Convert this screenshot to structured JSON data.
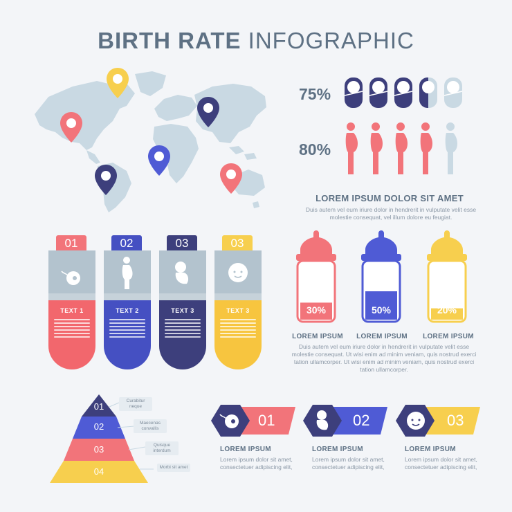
{
  "title": {
    "bold": "BIRTH RATE",
    "light": "INFOGRAPHIC"
  },
  "stats": [
    {
      "value": "75%"
    },
    {
      "value": "80%"
    }
  ],
  "main_heading": "LOREM IPSUM DOLOR SIT AMET",
  "main_body": "Duis autem vel eum iriure dolor in hendrerit in vulputate velit esse molestie consequat, vel illum dolore eu feugiat.",
  "tubes": [
    {
      "num": "01",
      "label": "TEXT 1",
      "color": "#f2676d",
      "icon": "sperm-egg-icon"
    },
    {
      "num": "02",
      "label": "TEXT 2",
      "color": "#4550c2",
      "icon": "pregnant-woman-icon"
    },
    {
      "num": "03",
      "label": "TEXT 3",
      "color": "#3d3f7c",
      "icon": "fetus-icon"
    },
    {
      "num": "03",
      "label": "TEXT 3",
      "color": "#f7c53f",
      "icon": "baby-face-icon"
    }
  ],
  "bottles": [
    {
      "value": "30%",
      "fill_fraction": 0.3,
      "color": "#f2747a",
      "label": "LOREM IPSUM"
    },
    {
      "value": "50%",
      "fill_fraction": 0.5,
      "color": "#4f5bd5",
      "label": "LOREM IPSUM"
    },
    {
      "value": "20%",
      "fill_fraction": 0.2,
      "color": "#f7cf4e",
      "label": "LOREM IPSUM"
    }
  ],
  "bottles_body": "Duis autem vel eum iriure dolor in hendrerit in vulputate velit esse molestie consequat. Ut wisi enim ad minim veniam, quis nostrud exerci tation ullamcorper. Ut wisi enim ad minim veniam, quis nostrud exerci tation ullamcorper.",
  "pyramid": [
    {
      "num": "01",
      "note": "Curabitur neque",
      "color": "#3d3f7c"
    },
    {
      "num": "02",
      "note": "Maecenas convallis",
      "color": "#4f5bd5"
    },
    {
      "num": "03",
      "note": "Quisque interdum",
      "color": "#f2747a"
    },
    {
      "num": "04",
      "note": "Morbi sit amet",
      "color": "#f7cf4e"
    }
  ],
  "hex_steps": [
    {
      "num": "01",
      "heading": "LOREM IPSUM",
      "body": "Lorem ipsum dolor sit amet, consectetuer adipiscing elit,",
      "dark": "#3d3f7c",
      "light": "#f2747a",
      "icon": "sperm-egg-icon"
    },
    {
      "num": "02",
      "heading": "LOREM IPSUM",
      "body": "Lorem ipsum dolor sit amet, consectetuer adipiscing elit,",
      "dark": "#3d3f7c",
      "light": "#4f5bd5",
      "icon": "fetus-icon"
    },
    {
      "num": "03",
      "heading": "LOREM IPSUM",
      "body": "Lorem ipsum dolor sit amet, consectetuer adipiscing elit,",
      "dark": "#3d3f7c",
      "light": "#f7cf4e",
      "icon": "baby-face-icon"
    }
  ],
  "colors": {
    "coral": "#f2747a",
    "blue": "#4f5bd5",
    "navy": "#3d3f7c",
    "yellow": "#f7cf4e",
    "map": "#c9d9e3",
    "slate": "#5e7184"
  }
}
